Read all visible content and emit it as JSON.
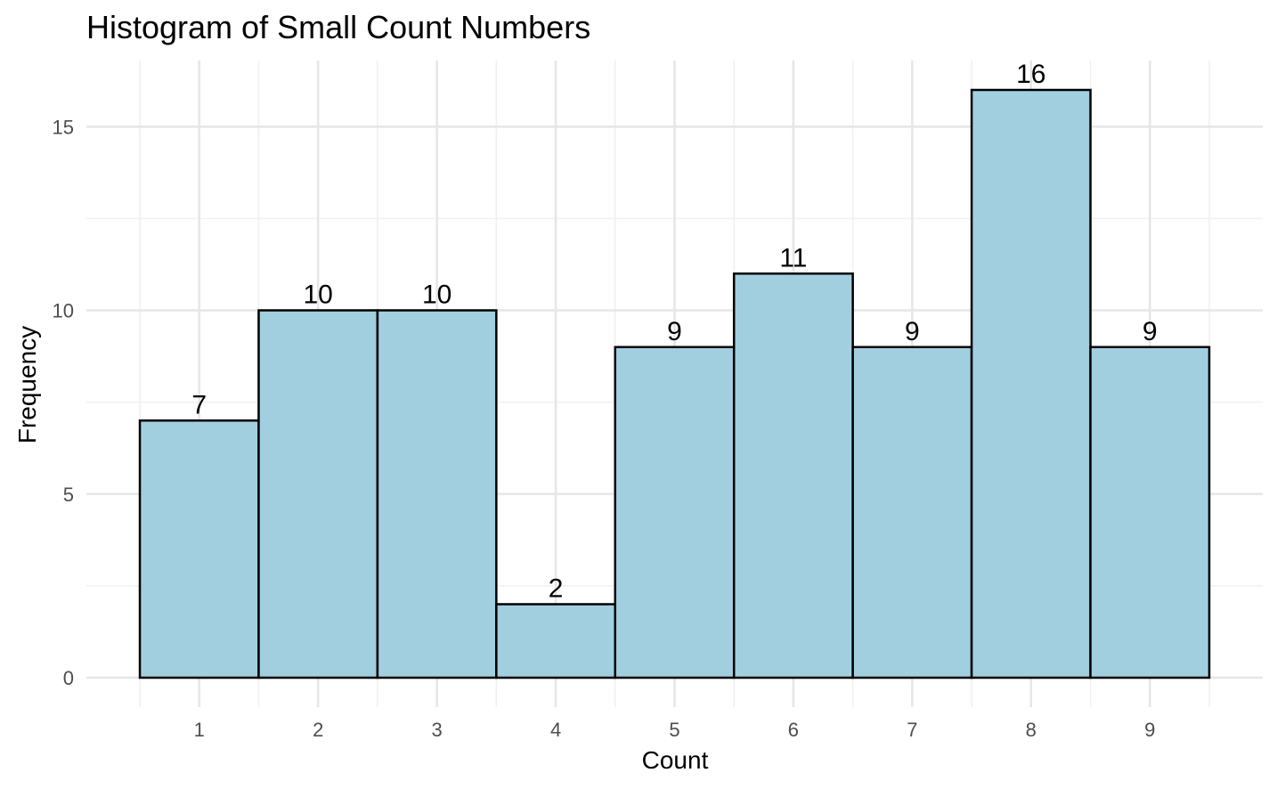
{
  "chart_data": {
    "type": "bar",
    "title": "Histogram of Small Count Numbers",
    "xlabel": "Count",
    "ylabel": "Frequency",
    "categories": [
      "1",
      "2",
      "3",
      "4",
      "5",
      "6",
      "7",
      "8",
      "9"
    ],
    "values": [
      7,
      10,
      10,
      2,
      9,
      11,
      9,
      16,
      9
    ],
    "data_labels": [
      "7",
      "10",
      "10",
      "2",
      "9",
      "11",
      "9",
      "16",
      "9"
    ],
    "x_ticks": [
      "1",
      "2",
      "3",
      "4",
      "5",
      "6",
      "7",
      "8",
      "9"
    ],
    "y_ticks": [
      0,
      5,
      10,
      15
    ],
    "y_tick_labels": [
      "0",
      "5",
      "10",
      "15"
    ],
    "ylim": [
      -0.8,
      16.8
    ],
    "xlim": [
      0.05,
      9.95
    ],
    "grid": true,
    "legend": "none",
    "colors": {
      "bar_fill": "#a2cfe0",
      "bar_stroke": "#000000",
      "grid_major": "#e6e6e6",
      "grid_minor": "#f0f0f0",
      "tick_text": "#4d4d4d"
    }
  }
}
